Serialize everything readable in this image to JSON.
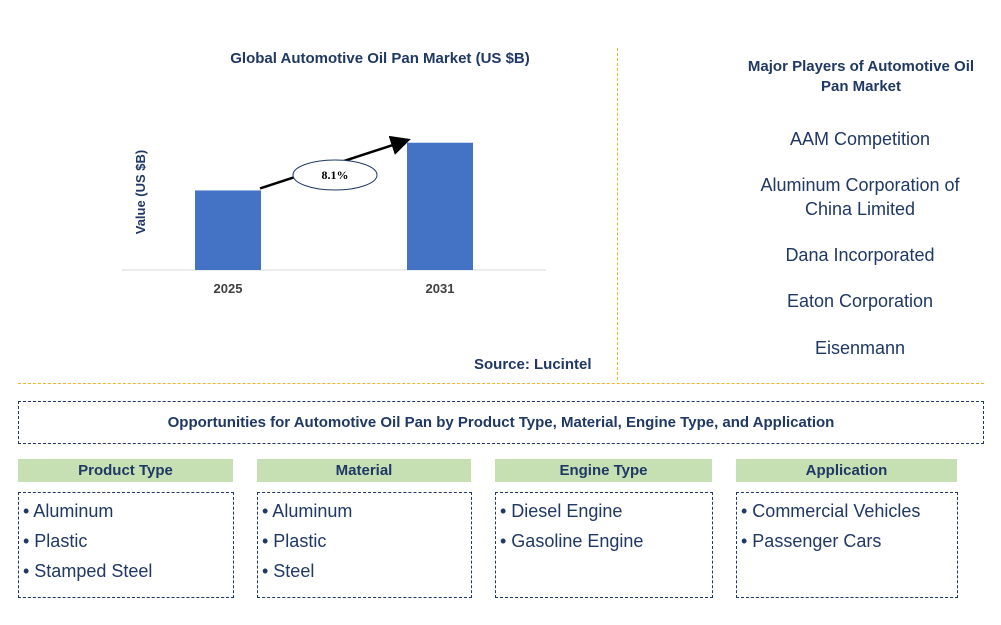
{
  "chart_data": {
    "type": "bar",
    "title": "Global Automotive Oil Pan Market (US $B)",
    "ylabel": "Value (US $B)",
    "categories": [
      "2025",
      "2031"
    ],
    "values": [
      1.0,
      1.6
    ],
    "annotation": {
      "text": "8.1%",
      "type": "CAGR arrow from 2025 to 2031"
    },
    "colors": {
      "bar": "#4472c4"
    },
    "grid": false,
    "legend": "none"
  },
  "source": "Source: Lucintel",
  "players": {
    "title": "Major Players of Automotive Oil Pan Market",
    "items": [
      "AAM Competition",
      "Aluminum Corporation of China Limited",
      "Dana Incorporated",
      "Eaton Corporation",
      "Eisenmann"
    ]
  },
  "opportunities": {
    "title": "Opportunities for Automotive Oil Pan by Product Type, Material, Engine Type, and Application",
    "categories": [
      {
        "name": "Product Type",
        "items": [
          "• Aluminum",
          "• Plastic",
          "• Stamped Steel"
        ]
      },
      {
        "name": "Material",
        "items": [
          "• Aluminum",
          "• Plastic",
          "• Steel"
        ]
      },
      {
        "name": "Engine Type",
        "items": [
          "• Diesel Engine",
          "• Gasoline Engine"
        ]
      },
      {
        "name": "Application",
        "items": [
          "• Commercial Vehicles",
          "• Passenger Cars"
        ]
      }
    ]
  },
  "colors": {
    "text": "#1f3864",
    "divider": "#f0b429",
    "category_header": "#c6e0b4"
  }
}
